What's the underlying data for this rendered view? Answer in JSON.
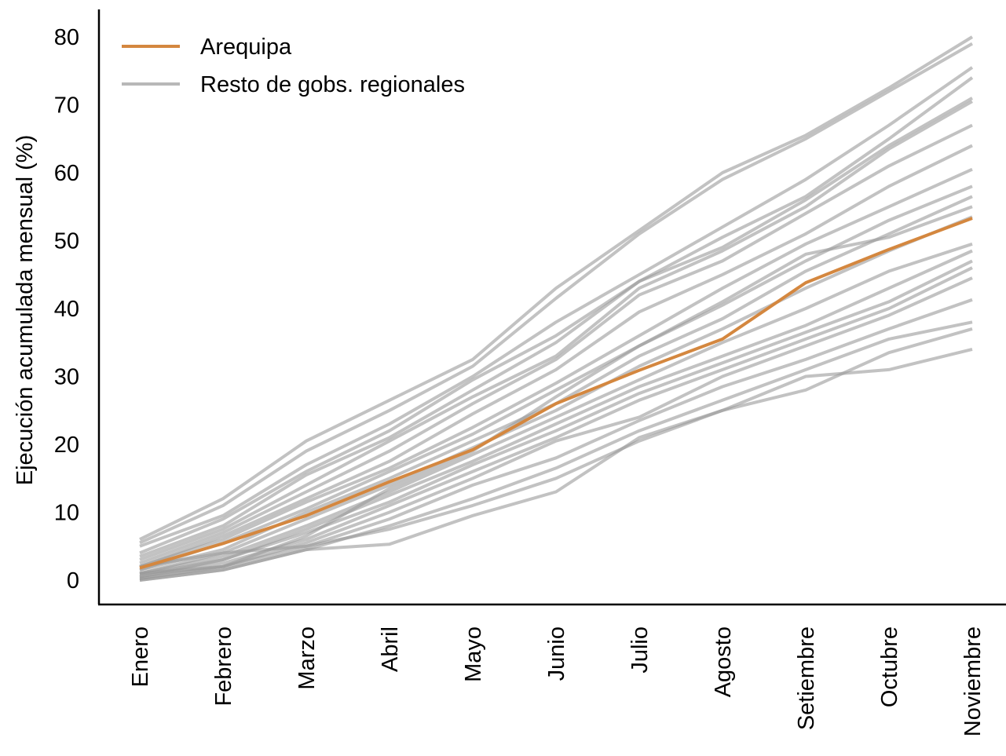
{
  "chart_data": {
    "type": "line",
    "title": "",
    "xlabel": "",
    "ylabel": "Ejecución acumulada mensual (%)",
    "categories": [
      "Enero",
      "Febrero",
      "Marzo",
      "Abril",
      "Mayo",
      "Junio",
      "Julio",
      "Agosto",
      "Setiembre",
      "Octubre",
      "Noviembre"
    ],
    "yticks": [
      "0",
      "10",
      "20",
      "30",
      "40",
      "50",
      "60",
      "70",
      "80"
    ],
    "ylim": [
      -3,
      84
    ],
    "grid": false,
    "legend": {
      "position": "top-left",
      "entries": [
        {
          "label": "Arequipa",
          "color": "#d4873f"
        },
        {
          "label": "Resto de gobs. regionales",
          "color": "#b0b0b0"
        }
      ]
    },
    "highlight": {
      "name": "Arequipa",
      "color": "#d4873f",
      "values": [
        1.8,
        5.4,
        9.5,
        14.5,
        19.2,
        26.0,
        30.9,
        35.5,
        43.8,
        48.7,
        53.3
      ]
    },
    "others_color": "#9a9a9a",
    "others": [
      [
        6.0,
        12.0,
        20.5,
        26.5,
        32.5,
        43.0,
        51.5,
        60.0,
        65.5,
        72.5,
        80.0
      ],
      [
        5.5,
        11.0,
        19.0,
        25.0,
        31.5,
        41.5,
        51.0,
        59.0,
        65.0,
        72.0,
        79.0
      ],
      [
        5.0,
        9.5,
        17.0,
        23.0,
        30.0,
        38.0,
        45.0,
        52.0,
        59.0,
        67.0,
        75.5
      ],
      [
        4.0,
        9.0,
        16.0,
        22.0,
        29.5,
        36.0,
        44.0,
        50.5,
        56.5,
        65.0,
        74.0
      ],
      [
        3.5,
        8.0,
        15.5,
        21.0,
        28.0,
        35.0,
        44.0,
        49.0,
        56.0,
        64.0,
        71.0
      ],
      [
        3.0,
        7.5,
        14.0,
        20.5,
        27.0,
        33.0,
        43.0,
        48.5,
        55.0,
        63.5,
        70.5
      ],
      [
        2.5,
        7.0,
        13.0,
        19.0,
        26.0,
        32.5,
        42.0,
        47.0,
        54.0,
        61.0,
        67.0
      ],
      [
        2.0,
        6.5,
        12.0,
        17.5,
        24.5,
        31.0,
        39.5,
        45.0,
        51.0,
        58.0,
        64.0
      ],
      [
        2.0,
        6.0,
        11.5,
        16.5,
        22.5,
        29.0,
        36.0,
        43.0,
        49.5,
        55.0,
        60.5
      ],
      [
        1.5,
        5.5,
        10.5,
        16.0,
        21.5,
        28.0,
        34.5,
        40.5,
        47.0,
        53.0,
        58.0
      ],
      [
        1.5,
        4.5,
        10.0,
        15.0,
        20.5,
        26.0,
        33.0,
        38.5,
        45.5,
        51.0,
        56.5
      ],
      [
        1.0,
        4.0,
        9.0,
        14.0,
        19.5,
        25.0,
        31.5,
        37.0,
        43.0,
        48.5,
        53.5
      ],
      [
        1.0,
        3.5,
        8.0,
        13.0,
        18.5,
        24.0,
        29.5,
        35.0,
        40.0,
        45.5,
        49.5
      ],
      [
        0.8,
        3.0,
        7.5,
        12.5,
        17.5,
        23.0,
        28.5,
        33.0,
        37.5,
        43.0,
        48.5
      ],
      [
        0.5,
        3.0,
        7.0,
        11.5,
        17.0,
        22.0,
        27.5,
        32.0,
        36.5,
        41.0,
        47.0
      ],
      [
        0.5,
        2.5,
        6.0,
        11.0,
        16.0,
        21.0,
        26.5,
        31.0,
        35.5,
        40.0,
        46.0
      ],
      [
        0.3,
        2.0,
        5.5,
        10.0,
        15.0,
        20.5,
        24.0,
        30.0,
        34.5,
        39.0,
        44.5
      ],
      [
        0.2,
        2.0,
        5.0,
        9.0,
        14.0,
        18.0,
        23.5,
        28.5,
        32.5,
        37.0,
        41.3
      ],
      [
        0.0,
        1.5,
        4.5,
        8.0,
        12.0,
        16.5,
        22.0,
        26.5,
        31.0,
        35.5,
        38.0
      ],
      [
        0.0,
        1.5,
        4.5,
        5.3,
        9.5,
        13.0,
        21.0,
        25.0,
        28.0,
        33.5,
        37.0
      ],
      [
        2.0,
        4.0,
        5.0,
        7.5,
        11.0,
        15.0,
        20.5,
        25.0,
        30.0,
        31.0,
        34.0
      ],
      [
        1.0,
        2.0,
        6.5,
        13.5,
        19.0,
        27.0,
        34.5,
        41.0,
        48.0,
        50.5,
        55.0
      ]
    ]
  }
}
